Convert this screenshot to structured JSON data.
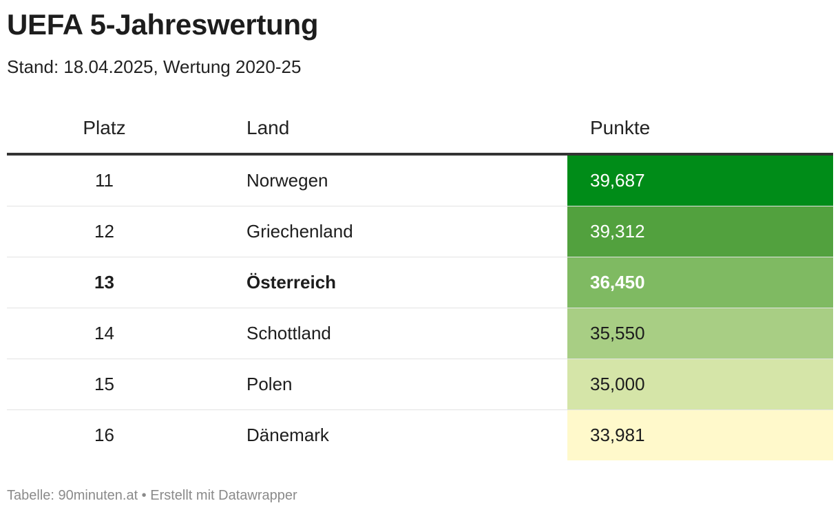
{
  "header": {
    "title": "UEFA 5-Jahreswertung",
    "subtitle": "Stand: 18.04.2025, Wertung 2020-25"
  },
  "chart_data": {
    "type": "table",
    "title": "UEFA 5-Jahreswertung",
    "subtitle": "Stand: 18.04.2025, Wertung 2020-25",
    "columns": [
      "Platz",
      "Land",
      "Punkte"
    ],
    "rows": [
      {
        "platz": "11",
        "land": "Norwegen",
        "punkte": "39,687",
        "value": 39.687,
        "color": "#008c18",
        "text_color": "#ffffff",
        "bold": false
      },
      {
        "platz": "12",
        "land": "Griechenland",
        "punkte": "39,312",
        "value": 39.312,
        "color": "#52a13e",
        "text_color": "#ffffff",
        "bold": false
      },
      {
        "platz": "13",
        "land": "Österreich",
        "punkte": "36,450",
        "value": 36.45,
        "color": "#7fba62",
        "text_color": "#ffffff",
        "bold": true
      },
      {
        "platz": "14",
        "land": "Schottland",
        "punkte": "35,550",
        "value": 35.55,
        "color": "#a8ce84",
        "text_color": "#1d1d1d",
        "bold": false
      },
      {
        "platz": "15",
        "land": "Polen",
        "punkte": "35,000",
        "value": 35.0,
        "color": "#d5e5a8",
        "text_color": "#1d1d1d",
        "bold": false
      },
      {
        "platz": "16",
        "land": "Dänemark",
        "punkte": "33,981",
        "value": 33.981,
        "color": "#fff9cb",
        "text_color": "#1d1d1d",
        "bold": false
      }
    ]
  },
  "footer": {
    "text": "Tabelle: 90minuten.at • Erstellt mit Datawrapper"
  }
}
